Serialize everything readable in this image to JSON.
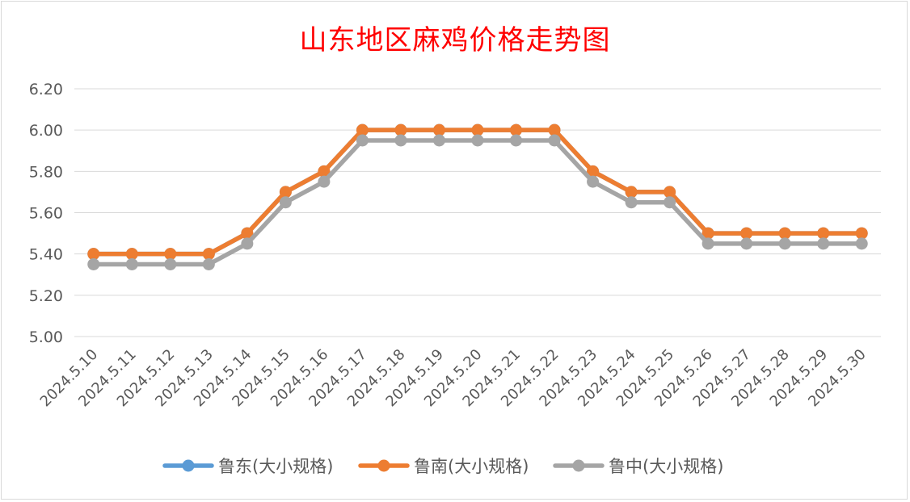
{
  "chart_data": {
    "type": "line",
    "title": "山东地区麻鸡价格走势图",
    "categories": [
      "2024.5.10",
      "2024.5.11",
      "2024.5.12",
      "2024.5.13",
      "2024.5.14",
      "2024.5.15",
      "2024.5.16",
      "2024.5.17",
      "2024.5.18",
      "2024.5.19",
      "2024.5.20",
      "2024.5.21",
      "2024.5.22",
      "2024.5.23",
      "2024.5.24",
      "2024.5.25",
      "2024.5.26",
      "2024.5.27",
      "2024.5.28",
      "2024.5.29",
      "2024.5.30"
    ],
    "series": [
      {
        "name": "鲁东(大小规格)",
        "color": "#5b9bd5",
        "values": [
          5.4,
          5.4,
          5.4,
          5.4,
          5.5,
          5.7,
          5.8,
          6.0,
          6.0,
          6.0,
          6.0,
          6.0,
          6.0,
          5.8,
          5.7,
          5.7,
          5.5,
          5.5,
          5.5,
          5.5,
          5.5
        ]
      },
      {
        "name": "鲁南(大小规格)",
        "color": "#ed7d31",
        "values": [
          5.4,
          5.4,
          5.4,
          5.4,
          5.5,
          5.7,
          5.8,
          6.0,
          6.0,
          6.0,
          6.0,
          6.0,
          6.0,
          5.8,
          5.7,
          5.7,
          5.5,
          5.5,
          5.5,
          5.5,
          5.5
        ]
      },
      {
        "name": "鲁中(大小规格)",
        "color": "#a5a5a5",
        "values": [
          5.35,
          5.35,
          5.35,
          5.35,
          5.45,
          5.65,
          5.75,
          5.95,
          5.95,
          5.95,
          5.95,
          5.95,
          5.95,
          5.75,
          5.65,
          5.65,
          5.45,
          5.45,
          5.45,
          5.45,
          5.45
        ]
      }
    ],
    "yticks": [
      "5.00",
      "5.20",
      "5.40",
      "5.60",
      "5.80",
      "6.00",
      "6.20"
    ],
    "ylim": [
      5.0,
      6.2
    ],
    "grid": true,
    "legend": "bottom"
  }
}
